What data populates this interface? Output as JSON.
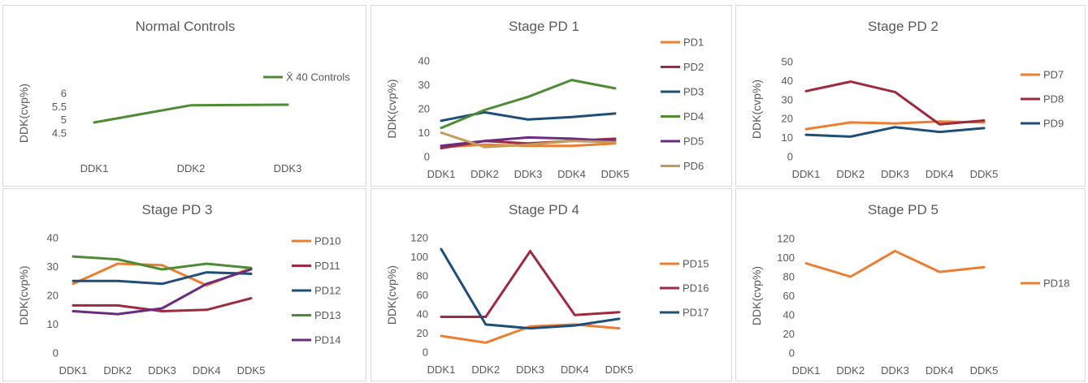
{
  "chart_data": [
    {
      "type": "line",
      "title": "Normal Controls",
      "ylabel": "DDK(cvp%)",
      "categories": [
        "DDK1",
        "DDK2",
        "DDK3"
      ],
      "yticks": [
        "4.5",
        "5",
        "5.5",
        "6"
      ],
      "ylim": [
        4.5,
        6
      ],
      "legend_position": "top-right",
      "series": [
        {
          "name": "X̄ 40 Controls",
          "color": "#4e8b35",
          "values": [
            4.9,
            5.55,
            5.57
          ]
        }
      ]
    },
    {
      "type": "line",
      "title": "Stage PD 1",
      "ylabel": "DDK(cvp%)",
      "categories": [
        "DDK1",
        "DDK2",
        "DDK3",
        "DDK4",
        "DDK5"
      ],
      "yticks": [
        "0",
        "10",
        "20",
        "30",
        "40"
      ],
      "ylim": [
        0,
        40
      ],
      "legend_position": "right",
      "series": [
        {
          "name": "PD1",
          "color": "#ed7d31",
          "values": [
            4,
            5,
            4.5,
            4.5,
            5.5
          ]
        },
        {
          "name": "PD2",
          "color": "#9e2a3e",
          "values": [
            3.5,
            6.5,
            5.5,
            6.5,
            7.5
          ]
        },
        {
          "name": "PD3",
          "color": "#1f4e79",
          "values": [
            15,
            18.5,
            15.5,
            16.5,
            18
          ]
        },
        {
          "name": "PD4",
          "color": "#4e8b35",
          "values": [
            12,
            19.5,
            25,
            32,
            28.5
          ]
        },
        {
          "name": "PD5",
          "color": "#6a2c7e",
          "values": [
            4.5,
            6.5,
            8,
            7.5,
            6.5
          ]
        },
        {
          "name": "PD6",
          "color": "#c49c5a",
          "values": [
            10,
            4,
            5,
            6.5,
            6
          ]
        }
      ]
    },
    {
      "type": "line",
      "title": "Stage PD 2",
      "ylabel": "DDK(cvp%)",
      "categories": [
        "DDK1",
        "DDK2",
        "DDK3",
        "DDK4",
        "DDK5"
      ],
      "yticks": [
        "0",
        "10",
        "20",
        "30",
        "40",
        "50"
      ],
      "ylim": [
        0,
        50
      ],
      "legend_position": "right",
      "series": [
        {
          "name": "PD7",
          "color": "#ed7d31",
          "values": [
            14.5,
            18,
            17.5,
            18.5,
            18
          ]
        },
        {
          "name": "PD8",
          "color": "#9e2a3e",
          "values": [
            34.5,
            39.5,
            34,
            17,
            19
          ]
        },
        {
          "name": "PD9",
          "color": "#1f4e79",
          "values": [
            11.5,
            10.5,
            15.5,
            13,
            15
          ]
        }
      ]
    },
    {
      "type": "line",
      "title": "Stage PD 3",
      "ylabel": "DDK(cvp%)",
      "categories": [
        "DDK1",
        "DDK2",
        "DDK3",
        "DDK4",
        "DDK5"
      ],
      "yticks": [
        "0",
        "10",
        "20",
        "30",
        "40"
      ],
      "ylim": [
        0,
        40
      ],
      "legend_position": "right",
      "series": [
        {
          "name": "PD10",
          "color": "#ed7d31",
          "values": [
            24,
            31,
            30.5,
            23.5,
            29.5
          ]
        },
        {
          "name": "PD11",
          "color": "#9e2a3e",
          "values": [
            16.5,
            16.5,
            14.5,
            15,
            19
          ]
        },
        {
          "name": "PD12",
          "color": "#1f4e79",
          "values": [
            25,
            25,
            24,
            28,
            27.5
          ]
        },
        {
          "name": "PD13",
          "color": "#4e8b35",
          "values": [
            33.5,
            32.5,
            29,
            31,
            29.5
          ]
        },
        {
          "name": "PD14",
          "color": "#6a2c7e",
          "values": [
            14.5,
            13.5,
            15.5,
            24,
            29
          ]
        }
      ]
    },
    {
      "type": "line",
      "title": "Stage PD 4",
      "ylabel": "DDK(cvp%)",
      "categories": [
        "DDK1",
        "DDK2",
        "DDK3",
        "DDK4",
        "DDK5"
      ],
      "yticks": [
        "0",
        "20",
        "40",
        "60",
        "80",
        "100",
        "120"
      ],
      "ylim": [
        0,
        120
      ],
      "legend_position": "right",
      "series": [
        {
          "name": "PD15",
          "color": "#ed7d31",
          "values": [
            17,
            10,
            27,
            29,
            25
          ]
        },
        {
          "name": "PD16",
          "color": "#9e2a3e",
          "values": [
            37,
            37,
            106,
            39,
            42
          ]
        },
        {
          "name": "PD17",
          "color": "#1f4e79",
          "values": [
            108,
            29,
            25,
            28,
            35
          ]
        }
      ]
    },
    {
      "type": "line",
      "title": "Stage PD 5",
      "ylabel": "DDK(cvp%)",
      "categories": [
        "DDK1",
        "DDK2",
        "DDK3",
        "DDK4",
        "DDK5"
      ],
      "yticks": [
        "0",
        "20",
        "40",
        "60",
        "80",
        "100",
        "120"
      ],
      "ylim": [
        0,
        120
      ],
      "legend_position": "right",
      "series": [
        {
          "name": "PD18",
          "color": "#ed7d31",
          "values": [
            94,
            80,
            107,
            85,
            90
          ]
        }
      ]
    }
  ]
}
